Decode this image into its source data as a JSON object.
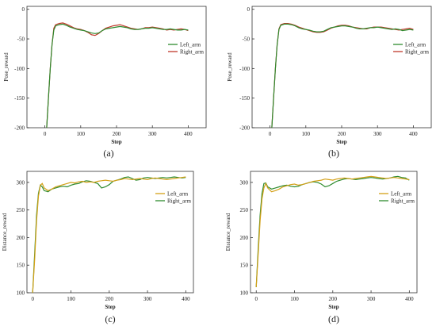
{
  "colors": {
    "left_arm": "#d4a017",
    "right_arm_top": "#c0392b",
    "left_arm_top": "#2e8b2e",
    "right_arm": "#2e8b2e",
    "axis": "#333333"
  },
  "chart_data": [
    {
      "type": "line",
      "panel_label": "(a)",
      "xlabel": "Step",
      "ylabel": "Pose_reward",
      "xlim": [
        -50,
        450
      ],
      "ylim": [
        -200,
        5
      ],
      "xticks": [
        0,
        100,
        200,
        300,
        400
      ],
      "yticks": [
        -200,
        -150,
        -100,
        -50,
        0
      ],
      "xtick_labels": [
        "0",
        "100",
        "200",
        "300",
        "400"
      ],
      "ytick_labels": [
        "-200",
        "-150",
        "-100",
        "-50",
        "0"
      ],
      "legend_position": "right-middle",
      "series": [
        {
          "name": "Left_arm",
          "color": "#2e8b2e",
          "x": [
            5,
            10,
            15,
            20,
            25,
            30,
            40,
            50,
            60,
            70,
            80,
            90,
            100,
            110,
            120,
            130,
            140,
            150,
            160,
            170,
            180,
            190,
            200,
            210,
            220,
            230,
            240,
            250,
            260,
            270,
            280,
            290,
            300,
            310,
            320,
            330,
            340,
            350,
            360,
            370,
            380,
            390,
            400
          ],
          "y": [
            -200,
            -150,
            -100,
            -60,
            -35,
            -28,
            -26,
            -25,
            -27,
            -30,
            -32,
            -34,
            -35,
            -36,
            -38,
            -40,
            -41,
            -40,
            -36,
            -33,
            -32,
            -31,
            -30,
            -29,
            -30,
            -31,
            -33,
            -34,
            -34,
            -33,
            -32,
            -32,
            -31,
            -32,
            -33,
            -34,
            -34,
            -33,
            -34,
            -35,
            -35,
            -34,
            -35
          ]
        },
        {
          "name": "Right_arm",
          "color": "#c0392b",
          "x": [
            5,
            10,
            15,
            20,
            25,
            30,
            40,
            50,
            60,
            70,
            80,
            90,
            100,
            110,
            120,
            130,
            140,
            150,
            160,
            170,
            180,
            190,
            200,
            210,
            220,
            230,
            240,
            250,
            260,
            270,
            280,
            290,
            300,
            310,
            320,
            330,
            340,
            350,
            360,
            370,
            380,
            390,
            400
          ],
          "y": [
            -200,
            -150,
            -100,
            -60,
            -32,
            -26,
            -24,
            -23,
            -25,
            -28,
            -31,
            -33,
            -34,
            -36,
            -39,
            -43,
            -44,
            -41,
            -36,
            -32,
            -30,
            -28,
            -27,
            -26,
            -28,
            -30,
            -32,
            -33,
            -34,
            -33,
            -31,
            -31,
            -30,
            -31,
            -32,
            -33,
            -35,
            -34,
            -35,
            -34,
            -33,
            -34,
            -36
          ]
        }
      ]
    },
    {
      "type": "line",
      "panel_label": "(b)",
      "xlabel": "Step",
      "ylabel": "Pose_reward",
      "xlim": [
        -50,
        450
      ],
      "ylim": [
        -200,
        5
      ],
      "xticks": [
        0,
        100,
        200,
        300,
        400
      ],
      "yticks": [
        -200,
        -150,
        -100,
        -50,
        0
      ],
      "xtick_labels": [
        "0",
        "100",
        "200",
        "300",
        "400"
      ],
      "ytick_labels": [
        "-200",
        "-150",
        "-100",
        "-50",
        "0"
      ],
      "legend_position": "right-middle",
      "series": [
        {
          "name": "Left_arm",
          "color": "#2e8b2e",
          "x": [
            5,
            10,
            15,
            20,
            25,
            30,
            40,
            50,
            60,
            70,
            80,
            90,
            100,
            110,
            120,
            130,
            140,
            150,
            160,
            170,
            180,
            190,
            200,
            210,
            220,
            230,
            240,
            250,
            260,
            270,
            280,
            290,
            300,
            310,
            320,
            330,
            340,
            350,
            360,
            370,
            380,
            390,
            400
          ],
          "y": [
            -200,
            -150,
            -100,
            -60,
            -34,
            -27,
            -25,
            -25,
            -26,
            -28,
            -31,
            -33,
            -34,
            -35,
            -37,
            -38,
            -38,
            -37,
            -34,
            -31,
            -30,
            -29,
            -28,
            -28,
            -29,
            -30,
            -32,
            -33,
            -33,
            -32,
            -31,
            -31,
            -30,
            -31,
            -32,
            -33,
            -34,
            -33,
            -34,
            -36,
            -35,
            -34,
            -35
          ]
        },
        {
          "name": "Right_arm",
          "color": "#c0392b",
          "x": [
            5,
            10,
            15,
            20,
            25,
            30,
            40,
            50,
            60,
            70,
            80,
            90,
            100,
            110,
            120,
            130,
            140,
            150,
            160,
            170,
            180,
            190,
            200,
            210,
            220,
            230,
            240,
            250,
            260,
            270,
            280,
            290,
            300,
            310,
            320,
            330,
            340,
            350,
            360,
            370,
            380,
            390,
            400
          ],
          "y": [
            -200,
            -150,
            -100,
            -60,
            -33,
            -26,
            -24,
            -24,
            -25,
            -27,
            -30,
            -32,
            -34,
            -36,
            -38,
            -39,
            -39,
            -38,
            -35,
            -32,
            -30,
            -28,
            -27,
            -27,
            -28,
            -30,
            -31,
            -32,
            -33,
            -33,
            -31,
            -30,
            -30,
            -30,
            -31,
            -32,
            -33,
            -34,
            -35,
            -34,
            -33,
            -32,
            -34
          ]
        }
      ]
    },
    {
      "type": "line",
      "panel_label": "(c)",
      "xlabel": "Step",
      "ylabel": "Distance_reward",
      "xlim": [
        -15,
        420
      ],
      "ylim": [
        100,
        320
      ],
      "xticks": [
        0,
        100,
        200,
        300,
        400
      ],
      "yticks": [
        100,
        150,
        200,
        250,
        300
      ],
      "xtick_labels": [
        "0",
        "100",
        "200",
        "300",
        "400"
      ],
      "ytick_labels": [
        "100",
        "150",
        "200",
        "250",
        "300"
      ],
      "legend_position": "right-middle",
      "series": [
        {
          "name": "Left_arm",
          "color": "#d4a017",
          "x": [
            0,
            5,
            10,
            15,
            20,
            25,
            30,
            40,
            50,
            60,
            70,
            80,
            90,
            100,
            110,
            120,
            130,
            140,
            150,
            160,
            170,
            180,
            190,
            200,
            210,
            220,
            230,
            240,
            250,
            260,
            270,
            280,
            290,
            300,
            310,
            320,
            330,
            340,
            350,
            360,
            370,
            380,
            390,
            400
          ],
          "y": [
            100,
            160,
            230,
            275,
            295,
            298,
            290,
            285,
            288,
            292,
            294,
            296,
            298,
            300,
            299,
            301,
            302,
            300,
            301,
            300,
            302,
            303,
            304,
            303,
            302,
            304,
            305,
            307,
            306,
            305,
            306,
            307,
            306,
            305,
            307,
            308,
            307,
            306,
            305,
            306,
            307,
            308,
            309,
            310
          ]
        },
        {
          "name": "Right_arm",
          "color": "#2e8b2e",
          "x": [
            0,
            5,
            10,
            15,
            20,
            25,
            30,
            40,
            50,
            60,
            70,
            80,
            90,
            100,
            110,
            120,
            130,
            140,
            150,
            160,
            170,
            180,
            190,
            200,
            210,
            220,
            230,
            240,
            250,
            260,
            270,
            280,
            290,
            300,
            310,
            320,
            330,
            340,
            350,
            360,
            370,
            380,
            390,
            400
          ],
          "y": [
            100,
            170,
            240,
            280,
            295,
            292,
            285,
            283,
            288,
            290,
            292,
            293,
            292,
            295,
            297,
            298,
            301,
            303,
            302,
            300,
            298,
            290,
            292,
            296,
            302,
            304,
            306,
            309,
            310,
            307,
            304,
            305,
            308,
            309,
            308,
            307,
            308,
            309,
            308,
            309,
            310,
            309,
            308,
            309
          ]
        }
      ]
    },
    {
      "type": "line",
      "panel_label": "(d)",
      "xlabel": "Step",
      "ylabel": "Distance_reward",
      "xlim": [
        -15,
        420
      ],
      "ylim": [
        100,
        320
      ],
      "xticks": [
        0,
        100,
        200,
        300,
        400
      ],
      "yticks": [
        100,
        150,
        200,
        250,
        300
      ],
      "xtick_labels": [
        "0",
        "100",
        "200",
        "300",
        "400"
      ],
      "ytick_labels": [
        "100",
        "150",
        "200",
        "250",
        "300"
      ],
      "legend_position": "right-middle",
      "series": [
        {
          "name": "Left_arm",
          "color": "#d4a017",
          "x": [
            0,
            5,
            10,
            15,
            20,
            25,
            30,
            40,
            50,
            60,
            70,
            80,
            90,
            100,
            110,
            120,
            130,
            140,
            150,
            160,
            170,
            180,
            190,
            200,
            210,
            220,
            230,
            240,
            250,
            260,
            270,
            280,
            290,
            300,
            310,
            320,
            330,
            340,
            350,
            360,
            370,
            380,
            390,
            400
          ],
          "y": [
            110,
            170,
            230,
            270,
            290,
            298,
            290,
            283,
            285,
            288,
            292,
            294,
            296,
            297,
            295,
            296,
            298,
            300,
            302,
            303,
            304,
            306,
            305,
            304,
            306,
            307,
            308,
            307,
            306,
            307,
            308,
            309,
            310,
            311,
            310,
            309,
            308,
            307,
            308,
            309,
            308,
            307,
            306,
            305
          ]
        },
        {
          "name": "Right_arm",
          "color": "#2e8b2e",
          "x": [
            0,
            5,
            10,
            15,
            20,
            25,
            30,
            40,
            50,
            60,
            70,
            80,
            90,
            100,
            110,
            120,
            130,
            140,
            150,
            160,
            170,
            180,
            190,
            200,
            210,
            220,
            230,
            240,
            250,
            260,
            270,
            280,
            290,
            300,
            310,
            320,
            330,
            340,
            350,
            360,
            370,
            380,
            390,
            400
          ],
          "y": [
            110,
            180,
            240,
            280,
            298,
            299,
            292,
            288,
            290,
            292,
            294,
            295,
            293,
            292,
            293,
            296,
            298,
            300,
            301,
            300,
            297,
            292,
            294,
            298,
            302,
            304,
            306,
            307,
            306,
            305,
            306,
            307,
            308,
            309,
            308,
            307,
            306,
            307,
            308,
            310,
            311,
            309,
            308,
            304
          ]
        }
      ]
    }
  ]
}
